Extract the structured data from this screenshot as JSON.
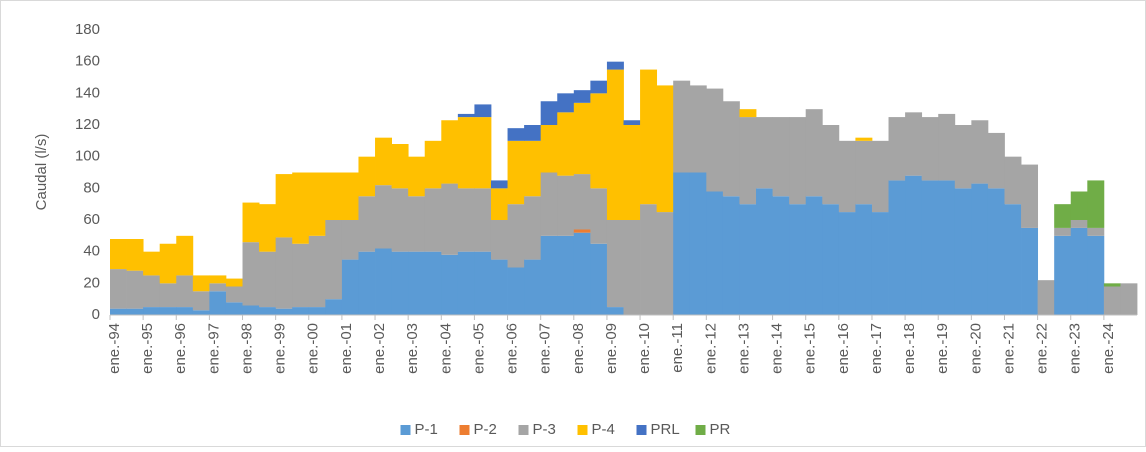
{
  "chart_data": {
    "type": "stacked-bar",
    "ylabel": "Caudal (l/s)",
    "categories": [
      "ene.-94",
      null,
      "ene.-95",
      null,
      "ene.-96",
      null,
      "ene.-97",
      null,
      "ene.-98",
      null,
      "ene.-99",
      null,
      "ene.-00",
      null,
      "ene.-01",
      null,
      "ene.-02",
      null,
      "ene.-03",
      null,
      "ene.-04",
      null,
      "ene.-05",
      null,
      "ene.-06",
      null,
      "ene.-07",
      null,
      "ene.-08",
      null,
      "ene.-09",
      null,
      "ene.-10",
      null,
      "ene.-11",
      null,
      "ene.-12",
      null,
      "ene.-13",
      null,
      "ene.-14",
      null,
      "ene.-15",
      null,
      "ene.-16",
      null,
      "ene.-17",
      null,
      "ene.-18",
      null,
      "ene.-19",
      null,
      "ene.-20",
      null,
      "ene.-21",
      null,
      "ene.-22",
      null,
      "ene.-23",
      null,
      "ene.-24",
      null
    ],
    "series": [
      {
        "name": "P-1",
        "color": "#5b9bd5",
        "values": [
          4,
          4,
          5,
          5,
          5,
          3,
          15,
          8,
          6,
          5,
          4,
          5,
          5,
          10,
          35,
          40,
          42,
          40,
          40,
          40,
          38,
          40,
          40,
          35,
          30,
          35,
          50,
          50,
          52,
          45,
          5,
          0,
          0,
          0,
          90,
          90,
          78,
          75,
          70,
          80,
          75,
          70,
          75,
          70,
          65,
          70,
          65,
          85,
          88,
          85,
          85,
          80,
          83,
          80,
          70,
          55,
          0,
          50,
          55,
          50,
          0,
          0
        ]
      },
      {
        "name": "P-2",
        "color": "#ed7d31",
        "values": [
          0,
          0,
          0,
          0,
          0,
          0,
          0,
          0,
          0,
          0,
          0,
          0,
          0,
          0,
          0,
          0,
          0,
          0,
          0,
          0,
          0,
          0,
          0,
          0,
          0,
          0,
          0,
          0,
          2,
          0,
          0,
          0,
          0,
          0,
          0,
          0,
          0,
          0,
          0,
          0,
          0,
          0,
          0,
          0,
          0,
          0,
          0,
          0,
          0,
          0,
          0,
          0,
          0,
          0,
          0,
          0,
          0,
          0,
          0,
          0,
          0,
          0
        ]
      },
      {
        "name": "P-3",
        "color": "#a5a5a5",
        "values": [
          25,
          24,
          20,
          15,
          20,
          12,
          5,
          10,
          40,
          35,
          45,
          40,
          45,
          50,
          25,
          35,
          40,
          40,
          35,
          40,
          45,
          40,
          40,
          25,
          40,
          40,
          40,
          38,
          35,
          35,
          55,
          60,
          70,
          65,
          58,
          55,
          65,
          60,
          55,
          45,
          50,
          55,
          55,
          50,
          45,
          40,
          45,
          40,
          40,
          40,
          42,
          40,
          40,
          35,
          30,
          40,
          22,
          5,
          5,
          5,
          18,
          20
        ]
      },
      {
        "name": "P-4",
        "color": "#ffc000",
        "values": [
          19,
          20,
          15,
          25,
          25,
          10,
          5,
          5,
          25,
          30,
          40,
          45,
          40,
          30,
          30,
          25,
          30,
          28,
          25,
          30,
          40,
          45,
          45,
          20,
          40,
          35,
          30,
          40,
          45,
          60,
          95,
          60,
          85,
          80,
          0,
          0,
          0,
          0,
          5,
          0,
          0,
          0,
          0,
          0,
          0,
          2,
          0,
          0,
          0,
          0,
          0,
          0,
          0,
          0,
          0,
          0,
          0,
          0,
          0,
          0,
          0,
          0
        ]
      },
      {
        "name": "PRL",
        "color": "#4472c4",
        "values": [
          0,
          0,
          0,
          0,
          0,
          0,
          0,
          0,
          0,
          0,
          0,
          0,
          0,
          0,
          0,
          0,
          0,
          0,
          0,
          0,
          0,
          2,
          8,
          5,
          8,
          10,
          15,
          12,
          8,
          8,
          5,
          3,
          0,
          0,
          0,
          0,
          0,
          0,
          0,
          0,
          0,
          0,
          0,
          0,
          0,
          0,
          0,
          0,
          0,
          0,
          0,
          0,
          0,
          0,
          0,
          0,
          0,
          0,
          0,
          0,
          0,
          0
        ]
      },
      {
        "name": "PR",
        "color": "#70ad47",
        "values": [
          0,
          0,
          0,
          0,
          0,
          0,
          0,
          0,
          0,
          0,
          0,
          0,
          0,
          0,
          0,
          0,
          0,
          0,
          0,
          0,
          0,
          0,
          0,
          0,
          0,
          0,
          0,
          0,
          0,
          0,
          0,
          0,
          0,
          0,
          0,
          0,
          0,
          0,
          0,
          0,
          0,
          0,
          0,
          0,
          0,
          0,
          0,
          0,
          0,
          0,
          0,
          0,
          0,
          0,
          0,
          0,
          0,
          15,
          18,
          30,
          2,
          0
        ]
      }
    ],
    "ylim": [
      0,
      180
    ],
    "yticks": [
      0,
      20,
      40,
      60,
      80,
      100,
      120,
      140,
      160,
      180
    ],
    "grid": false,
    "legend": "bottom"
  }
}
